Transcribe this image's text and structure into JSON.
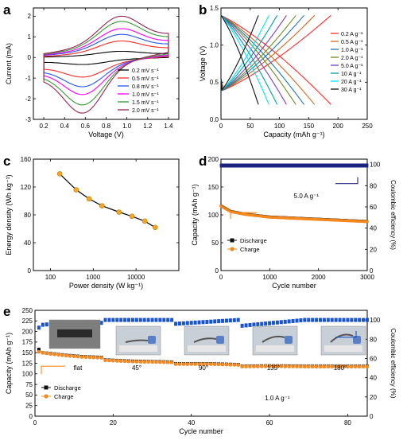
{
  "chart_data": [
    {
      "panel": "a",
      "type": "line",
      "xlabel": "Voltage (V)",
      "ylabel": "Current (mA)",
      "xlim": [
        0.1,
        1.5
      ],
      "ylim": [
        -3.0,
        2.4
      ],
      "xticks": [
        "0.2",
        "0.4",
        "0.6",
        "0.8",
        "1.0",
        "1.2",
        "1.4"
      ],
      "xtick_values": [
        0.2,
        0.4,
        0.6,
        0.8,
        1.0,
        1.2,
        1.4
      ],
      "yticks": [
        "-3",
        "-2",
        "-1",
        "0",
        "1",
        "2"
      ],
      "ytick_values": [
        -3,
        -2,
        -1,
        0,
        1,
        2
      ],
      "legend_position": "bottom-right",
      "cv_shape": {
        "v_min": 0.2,
        "v_max": 1.4,
        "anodic_peak_v": 0.95,
        "cathodic_peak_v": 0.57
      },
      "series": [
        {
          "name": "0.2 mV s⁻¹",
          "color": "#000000",
          "anodic_peak": 0.3,
          "cathodic_peak": -0.34,
          "upper_at_start": 0.02,
          "upper_at_end": 0.18,
          "lower_at_start": -0.22,
          "lower_at_end": 0.0
        },
        {
          "name": "0.5 mV s⁻¹",
          "color": "#ff2a2a",
          "anodic_peak": 0.8,
          "cathodic_peak": -0.95,
          "upper_at_start": 0.05,
          "upper_at_end": 0.45,
          "lower_at_start": -0.5,
          "lower_at_end": 0.05
        },
        {
          "name": "0.8 mV s⁻¹",
          "color": "#2255ee",
          "anodic_peak": 1.12,
          "cathodic_peak": -1.42,
          "upper_at_start": 0.1,
          "upper_at_end": 0.62,
          "lower_at_start": -0.62,
          "lower_at_end": 0.1
        },
        {
          "name": "1.0 mV s⁻¹",
          "color": "#ff00ff",
          "anodic_peak": 1.4,
          "cathodic_peak": -1.8,
          "upper_at_start": 0.12,
          "upper_at_end": 0.78,
          "lower_at_start": -0.72,
          "lower_at_end": 0.12
        },
        {
          "name": "1.5 mV s⁻¹",
          "color": "#339933",
          "anodic_peak": 1.75,
          "cathodic_peak": -2.3,
          "upper_at_start": 0.15,
          "upper_at_end": 0.95,
          "lower_at_start": -0.82,
          "lower_at_end": 0.18
        },
        {
          "name": "2.0 mV s⁻¹",
          "color": "#992255",
          "anodic_peak": 2.0,
          "cathodic_peak": -2.7,
          "upper_at_start": 0.18,
          "upper_at_end": 1.1,
          "lower_at_start": -0.92,
          "lower_at_end": 0.25
        }
      ]
    },
    {
      "panel": "b",
      "type": "line",
      "xlabel": "Capacity (mAh g⁻¹)",
      "ylabel": "Voltage (V)",
      "xlim": [
        0,
        250
      ],
      "ylim": [
        0.0,
        1.5
      ],
      "xticks": [
        "0",
        "50",
        "100",
        "150",
        "200",
        "250"
      ],
      "xtick_values": [
        0,
        50,
        100,
        150,
        200,
        250
      ],
      "yticks": [
        "0.0",
        "0.5",
        "1.0",
        "1.5"
      ],
      "ytick_values": [
        0.0,
        0.5,
        1.0,
        1.5
      ],
      "legend_position": "top-right",
      "v_low": 0.2,
      "v_high": 1.4,
      "series": [
        {
          "name": "0.2 A g⁻¹",
          "color": "#ff2a2a",
          "capacity": 188
        },
        {
          "name": "0.5 A g⁻¹",
          "color": "#d2691e",
          "capacity": 160
        },
        {
          "name": "1.0 A g⁻¹",
          "color": "#1f77b4",
          "capacity": 142
        },
        {
          "name": "2.0 A g⁻¹",
          "color": "#6e8b1e",
          "capacity": 128
        },
        {
          "name": "5.0 A g⁻¹",
          "color": "#7b3fbf",
          "capacity": 112
        },
        {
          "name": "10 A g⁻¹",
          "color": "#00a0a0",
          "capacity": 96
        },
        {
          "name": "20 A g⁻¹",
          "color": "#00e5ff",
          "capacity": 82
        },
        {
          "name": "30 A g⁻¹",
          "color": "#111111",
          "capacity": 64
        }
      ]
    },
    {
      "panel": "c",
      "type": "line",
      "xscale": "log",
      "xlabel": "Power density (W kg⁻¹)",
      "ylabel": "Energy density (Wh kg⁻¹)",
      "xlim": [
        40,
        100000
      ],
      "ylim": [
        0,
        160
      ],
      "xticks": [
        "100",
        "1000",
        "10000"
      ],
      "xtick_values": [
        100,
        1000,
        10000
      ],
      "yticks": [
        "0",
        "40",
        "80",
        "120",
        "160"
      ],
      "ytick_values": [
        0,
        40,
        80,
        120,
        160
      ],
      "marker_color": "#f5a623",
      "x": [
        165,
        400,
        800,
        1600,
        4000,
        8000,
        16000,
        28000
      ],
      "y": [
        139,
        116,
        103,
        93,
        84,
        78,
        71,
        62
      ]
    },
    {
      "panel": "d",
      "type": "scatter",
      "xlabel": "Cycle number",
      "ylabel": "Capacity (mAh g⁻¹)",
      "y2label": "Coulombic efficiency (%)",
      "xlim": [
        0,
        3000
      ],
      "ylim": [
        0,
        200
      ],
      "y2lim": [
        0,
        105
      ],
      "xticks": [
        "0",
        "1000",
        "2000",
        "3000"
      ],
      "xtick_values": [
        0,
        1000,
        2000,
        3000
      ],
      "yticks": [
        "0",
        "50",
        "100",
        "150",
        "200"
      ],
      "ytick_values": [
        0,
        50,
        100,
        150,
        200
      ],
      "y2ticks": [
        "0",
        "20",
        "40",
        "60",
        "80",
        "100"
      ],
      "y2tick_values": [
        0,
        20,
        40,
        60,
        80,
        100
      ],
      "annotation": "5.0 A g⁻¹",
      "legend_position": "bottom-left",
      "series": [
        {
          "name": "Discharge",
          "color": "#111111",
          "x": [
            0,
            3000
          ],
          "y": [
            117,
            89
          ]
        },
        {
          "name": "Charge",
          "color": "#f5891f",
          "x": [
            0,
            200,
            500,
            1000,
            1500,
            2000,
            2500,
            3000
          ],
          "y": [
            117,
            107,
            102,
            97,
            95,
            93,
            91,
            89
          ]
        },
        {
          "name": "Coulombic efficiency",
          "axis": "y2",
          "color": "#1a237e",
          "x": [
            0,
            3000
          ],
          "y": [
            99,
            99
          ]
        }
      ]
    },
    {
      "panel": "e",
      "type": "scatter",
      "xlabel": "Cycle number",
      "ylabel": "Capacity (mAh g⁻¹)",
      "y2label": "Coulombic efficiency (%)",
      "xlim": [
        0,
        85
      ],
      "ylim": [
        0,
        250
      ],
      "y2lim": [
        0,
        110
      ],
      "xticks": [
        "0",
        "20",
        "40",
        "60",
        "80"
      ],
      "xtick_values": [
        0,
        20,
        40,
        60,
        80
      ],
      "yticks": [
        "0",
        "25",
        "50",
        "75",
        "100",
        "125",
        "150",
        "175",
        "200",
        "225",
        "250"
      ],
      "ytick_values": [
        0,
        25,
        50,
        75,
        100,
        125,
        150,
        175,
        200,
        225,
        250
      ],
      "y2ticks": [
        "0",
        "20",
        "40",
        "60",
        "80",
        "100"
      ],
      "y2tick_values": [
        0,
        20,
        40,
        60,
        80,
        100
      ],
      "annotation": "1.0 A g⁻¹",
      "legend_position": "bottom-left",
      "bend_labels": [
        "flat",
        "45°",
        "90°",
        "135°",
        "180°"
      ],
      "photo_count": 5,
      "series": [
        {
          "name": "Discharge",
          "color": "#111111",
          "x": [
            0,
            1,
            2,
            4,
            8,
            12,
            17,
            18,
            25,
            35,
            36,
            45,
            52,
            53,
            60,
            70,
            85
          ],
          "y": [
            170,
            158,
            150,
            148,
            144,
            141,
            139,
            133,
            130,
            128,
            124,
            124,
            122,
            118,
            119,
            118,
            118
          ]
        },
        {
          "name": "Charge",
          "color": "#f5891f",
          "x": [
            0,
            1,
            2,
            4,
            8,
            12,
            17,
            18,
            25,
            35,
            36,
            45,
            52,
            53,
            60,
            70,
            85
          ],
          "y": [
            155,
            152,
            150,
            147,
            143,
            140,
            138,
            132,
            129,
            127,
            123,
            123,
            121,
            117,
            118,
            117,
            117
          ]
        },
        {
          "name": "Coulombic efficiency",
          "axis": "y2",
          "color": "#1a55c8",
          "x": [
            0,
            1,
            2,
            5,
            10,
            17,
            18,
            35,
            36,
            52,
            53,
            69,
            70,
            85
          ],
          "y": [
            87,
            92,
            95,
            96,
            97,
            97,
            100,
            100,
            96,
            100,
            94,
            100,
            100,
            100
          ]
        }
      ]
    }
  ]
}
